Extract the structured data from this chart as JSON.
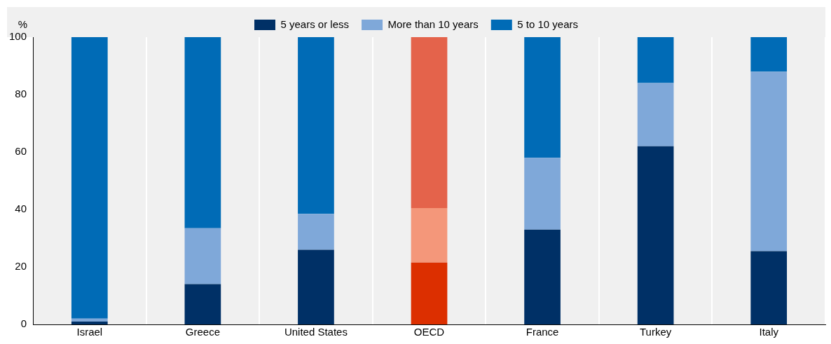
{
  "chart_data": {
    "type": "bar",
    "stacked": true,
    "ylabel": "%",
    "categories": [
      "Israel",
      "Greece",
      "United States",
      "OECD",
      "France",
      "Turkey",
      "Italy"
    ],
    "series": [
      {
        "name": "5 years or less",
        "color": "#003066",
        "colors": [
          "#003066",
          "#003066",
          "#003066",
          "#dc2f00",
          "#003066",
          "#003066",
          "#003066"
        ],
        "values": [
          1,
          14,
          26,
          21.5,
          33,
          62,
          25.5
        ]
      },
      {
        "name": "More than 10 years",
        "color": "#7fa8d9",
        "colors": [
          "#7fa8d9",
          "#7fa8d9",
          "#7fa8d9",
          "#f4977a",
          "#7fa8d9",
          "#7fa8d9",
          "#7fa8d9"
        ],
        "values": [
          1,
          19.5,
          12.5,
          19,
          25,
          22,
          62.5
        ]
      },
      {
        "name": "5 to 10 years",
        "color": "#006bb6",
        "colors": [
          "#006bb6",
          "#006bb6",
          "#006bb6",
          "#e4634b",
          "#006bb6",
          "#006bb6",
          "#006bb6"
        ],
        "values": [
          98,
          66.5,
          61.5,
          59.5,
          42,
          16,
          12
        ]
      }
    ],
    "ylim": [
      0,
      100
    ],
    "yticks": [
      0,
      20,
      40,
      60,
      80,
      100
    ],
    "grid": "x",
    "legend": "top"
  }
}
